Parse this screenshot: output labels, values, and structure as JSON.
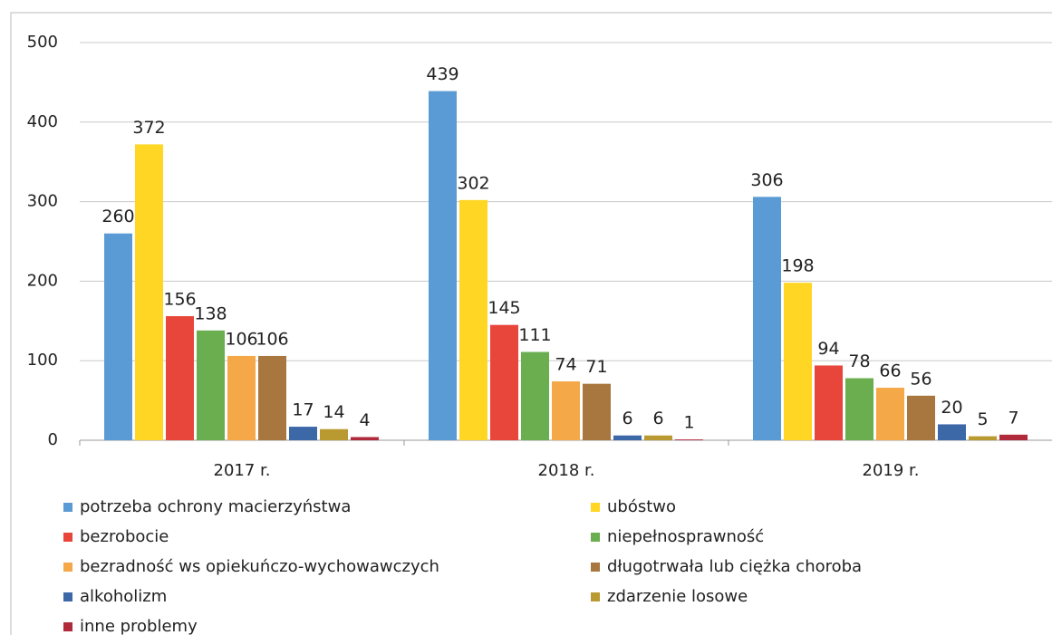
{
  "chart_data": {
    "type": "bar",
    "categories": [
      "2017 r.",
      "2018 r.",
      "2019 r."
    ],
    "series": [
      {
        "name": "potrzeba ochrony macierzyństwa",
        "color": "#5b9bd5",
        "values": [
          260,
          439,
          306
        ]
      },
      {
        "name": "ubóstwo",
        "color": "#ffd624",
        "values": [
          372,
          302,
          198
        ]
      },
      {
        "name": "bezrobocie",
        "color": "#e8463a",
        "values": [
          156,
          145,
          94
        ]
      },
      {
        "name": "niepełnosprawność",
        "color": "#6aae4f",
        "values": [
          138,
          111,
          78
        ]
      },
      {
        "name": "bezradność ws opiekuńczo-wychowawczych",
        "color": "#f5a847",
        "values": [
          106,
          74,
          66
        ]
      },
      {
        "name": "długotrwała lub ciężka choroba",
        "color": "#a8773f",
        "values": [
          106,
          71,
          56
        ]
      },
      {
        "name": "alkoholizm",
        "color": "#3c68a8",
        "values": [
          17,
          6,
          20
        ]
      },
      {
        "name": "zdarzenie losowe",
        "color": "#b99a30",
        "values": [
          14,
          6,
          5
        ]
      },
      {
        "name": "inne problemy",
        "color": "#b02a3c",
        "values": [
          4,
          1,
          7
        ]
      }
    ],
    "ylim": [
      0,
      500
    ],
    "yticks": [
      0,
      100,
      200,
      300,
      400,
      500
    ],
    "grid": true
  }
}
